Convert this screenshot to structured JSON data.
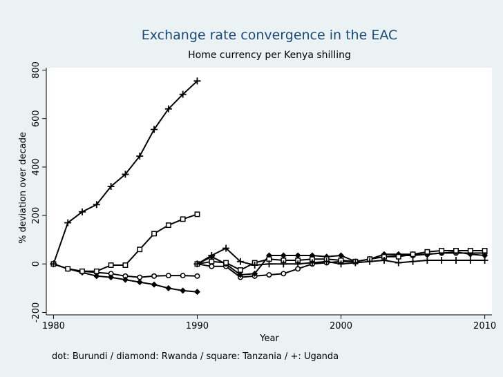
{
  "chart_data": {
    "type": "line",
    "title": "Exchange rate convergence in the EAC",
    "subtitle": "Home currency per Kenya shilling",
    "xlabel": "Year",
    "ylabel": "% deviation over decade",
    "note": "dot: Burundi / diamond: Rwanda / square: Tanzania / +: Uganda",
    "xlim": [
      1979.5,
      2010.5
    ],
    "ylim": [
      -210,
      810
    ],
    "xticks": [
      1980,
      1990,
      2000,
      2010
    ],
    "yticks": [
      -200,
      0,
      200,
      400,
      600,
      800
    ],
    "grid": false,
    "series": [
      {
        "marker": "circle",
        "segments": [
          [
            [
              1980,
              0
            ],
            [
              1981,
              -20
            ],
            [
              1982,
              -30
            ],
            [
              1983,
              -35
            ],
            [
              1984,
              -40
            ],
            [
              1985,
              -50
            ],
            [
              1986,
              -55
            ],
            [
              1987,
              -50
            ],
            [
              1988,
              -48
            ],
            [
              1989,
              -48
            ],
            [
              1990,
              -50
            ]
          ],
          [
            [
              1990,
              0
            ],
            [
              1991,
              -10
            ],
            [
              1992,
              -10
            ],
            [
              1993,
              -55
            ],
            [
              1994,
              -50
            ],
            [
              1995,
              -45
            ],
            [
              1996,
              -40
            ],
            [
              1997,
              -20
            ],
            [
              1998,
              0
            ],
            [
              1999,
              5
            ],
            [
              2000,
              10
            ],
            [
              2001,
              10
            ],
            [
              2002,
              20
            ],
            [
              2003,
              30
            ],
            [
              2004,
              35
            ],
            [
              2005,
              35
            ],
            [
              2006,
              40
            ],
            [
              2007,
              45
            ],
            [
              2008,
              45
            ],
            [
              2009,
              45
            ],
            [
              2010,
              45
            ]
          ]
        ]
      },
      {
        "marker": "diamond",
        "segments": [
          [
            [
              1980,
              0
            ],
            [
              1981,
              -20
            ],
            [
              1982,
              -35
            ],
            [
              1983,
              -50
            ],
            [
              1984,
              -55
            ],
            [
              1985,
              -65
            ],
            [
              1986,
              -75
            ],
            [
              1987,
              -85
            ],
            [
              1988,
              -100
            ],
            [
              1989,
              -110
            ],
            [
              1990,
              -115
            ]
          ],
          [
            [
              1990,
              0
            ],
            [
              1991,
              30
            ],
            [
              1992,
              0
            ],
            [
              1993,
              -45
            ],
            [
              1994,
              -40
            ],
            [
              1995,
              35
            ],
            [
              1996,
              35
            ],
            [
              1997,
              35
            ],
            [
              1998,
              35
            ],
            [
              1999,
              30
            ],
            [
              2000,
              35
            ],
            [
              2001,
              10
            ],
            [
              2002,
              20
            ],
            [
              2003,
              40
            ],
            [
              2004,
              40
            ],
            [
              2005,
              40
            ],
            [
              2006,
              40
            ],
            [
              2007,
              45
            ],
            [
              2008,
              50
            ],
            [
              2009,
              40
            ],
            [
              2010,
              35
            ]
          ]
        ]
      },
      {
        "marker": "square",
        "segments": [
          [
            [
              1980,
              0
            ],
            [
              1981,
              -20
            ],
            [
              1982,
              -30
            ],
            [
              1983,
              -30
            ],
            [
              1984,
              -5
            ],
            [
              1985,
              -5
            ],
            [
              1986,
              60
            ],
            [
              1987,
              125
            ],
            [
              1988,
              160
            ],
            [
              1989,
              185
            ],
            [
              1990,
              205
            ]
          ],
          [
            [
              1990,
              0
            ],
            [
              1991,
              10
            ],
            [
              1992,
              5
            ],
            [
              1993,
              -25
            ],
            [
              1994,
              5
            ],
            [
              1995,
              20
            ],
            [
              1996,
              15
            ],
            [
              1997,
              15
            ],
            [
              1998,
              20
            ],
            [
              1999,
              20
            ],
            [
              2000,
              15
            ],
            [
              2001,
              10
            ],
            [
              2002,
              20
            ],
            [
              2003,
              30
            ],
            [
              2004,
              30
            ],
            [
              2005,
              40
            ],
            [
              2006,
              50
            ],
            [
              2007,
              55
            ],
            [
              2008,
              55
            ],
            [
              2009,
              55
            ],
            [
              2010,
              55
            ]
          ]
        ]
      },
      {
        "marker": "plus",
        "segments": [
          [
            [
              1980,
              0
            ],
            [
              1981,
              170
            ],
            [
              1982,
              215
            ],
            [
              1983,
              245
            ],
            [
              1984,
              320
            ],
            [
              1985,
              370
            ],
            [
              1986,
              445
            ],
            [
              1987,
              555
            ],
            [
              1988,
              640
            ],
            [
              1989,
              700
            ],
            [
              1990,
              755
            ]
          ],
          [
            [
              1990,
              0
            ],
            [
              1991,
              35
            ],
            [
              1992,
              65
            ],
            [
              1993,
              10
            ],
            [
              1994,
              -5
            ],
            [
              1995,
              0
            ],
            [
              1996,
              0
            ],
            [
              1997,
              0
            ],
            [
              1998,
              5
            ],
            [
              1999,
              10
            ],
            [
              2000,
              0
            ],
            [
              2001,
              5
            ],
            [
              2002,
              10
            ],
            [
              2003,
              15
            ],
            [
              2004,
              5
            ],
            [
              2005,
              10
            ],
            [
              2006,
              15
            ],
            [
              2007,
              15
            ],
            [
              2008,
              15
            ],
            [
              2009,
              15
            ],
            [
              2010,
              15
            ]
          ]
        ]
      }
    ]
  }
}
